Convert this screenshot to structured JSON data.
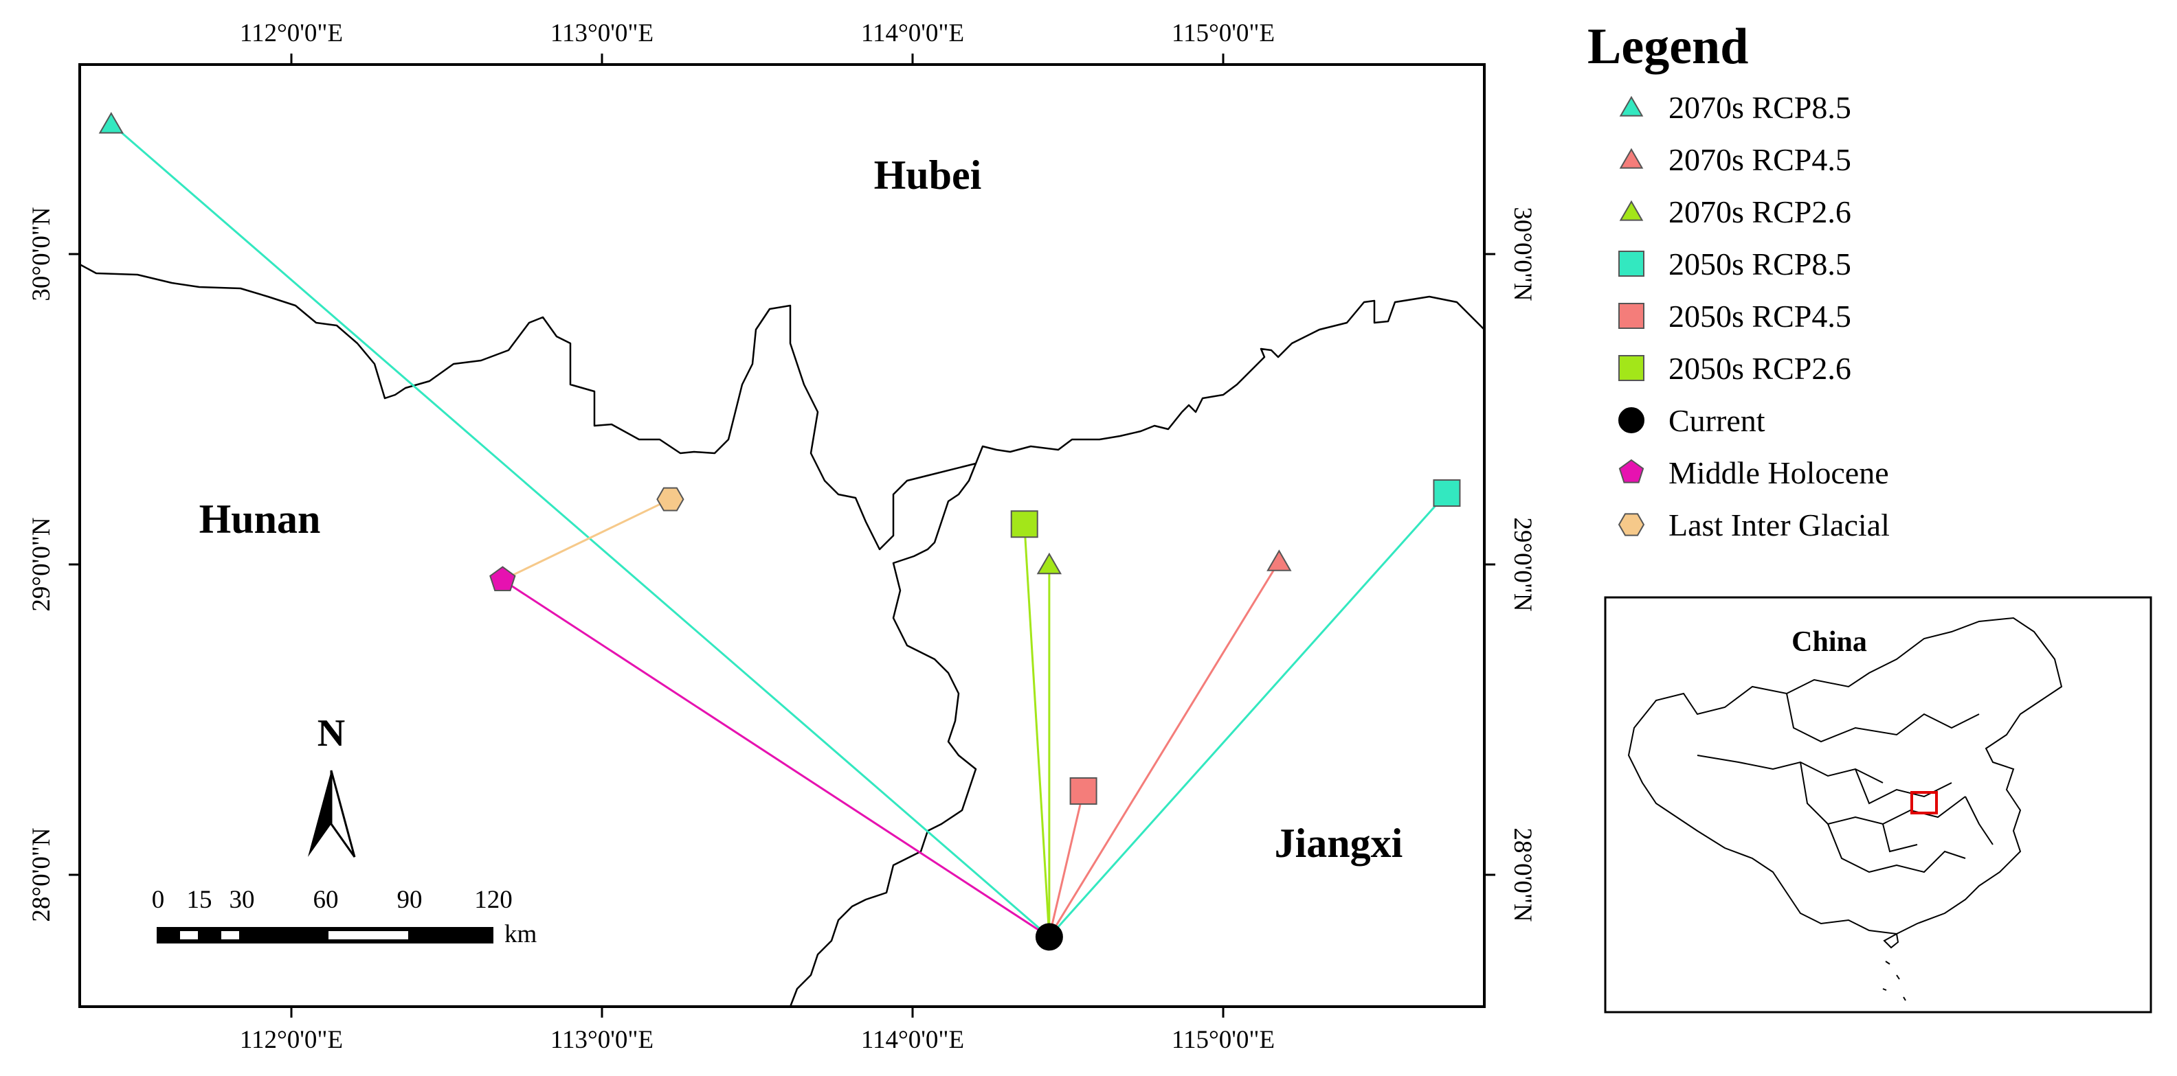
{
  "map": {
    "provinces": [
      "Hubei",
      "Hunan",
      "Jiangxi"
    ],
    "top_ticks": [
      "112°0'0\"E",
      "113°0'0\"E",
      "114°0'0\"E",
      "115°0'0\"E"
    ],
    "bottom_ticks": [
      "112°0'0\"E",
      "113°0'0\"E",
      "114°0'0\"E",
      "115°0'0\"E"
    ],
    "left_ticks": [
      "30°0'0\"N",
      "29°0'0\"N",
      "28°0'0\"N"
    ],
    "right_ticks": [
      "30°0'0\"N",
      "29°0'0\"N",
      "28°0'0\"N"
    ],
    "north_label": "N",
    "scalebar": {
      "labels": [
        "0",
        "15",
        "30",
        "60",
        "90",
        "120"
      ],
      "unit": "km"
    },
    "centroids": [
      {
        "name": "Current",
        "lon": 114.44,
        "lat": 27.8
      },
      {
        "name": "2070s RCP8.5",
        "lon": 111.42,
        "lat": 30.42
      },
      {
        "name": "2070s RCP4.5",
        "lon": 115.18,
        "lat": 29.01
      },
      {
        "name": "2070s RCP2.6",
        "lon": 114.44,
        "lat": 29.0
      },
      {
        "name": "2050s RCP8.5",
        "lon": 115.72,
        "lat": 29.23
      },
      {
        "name": "2050s RCP4.5",
        "lon": 114.55,
        "lat": 28.27
      },
      {
        "name": "2050s RCP2.6",
        "lon": 114.36,
        "lat": 29.13
      },
      {
        "name": "Middle Holocene",
        "lon": 112.68,
        "lat": 28.95
      },
      {
        "name": "Last Inter Glacial",
        "lon": 113.22,
        "lat": 29.21
      }
    ],
    "colors": {
      "rcp85": "#33e8c0",
      "rcp45": "#f47d7a",
      "rcp26": "#a3e619",
      "current": "#000000",
      "holocene": "#e612b0",
      "lig": "#f6c98a"
    }
  },
  "legend": {
    "title": "Legend",
    "items": [
      {
        "label": "2070s RCP8.5",
        "shape": "triangle-icon",
        "color": "#33e8c0"
      },
      {
        "label": "2070s RCP4.5",
        "shape": "triangle-icon",
        "color": "#f47d7a"
      },
      {
        "label": "2070s RCP2.6",
        "shape": "triangle-icon",
        "color": "#a3e619"
      },
      {
        "label": "2050s RCP8.5",
        "shape": "square-icon",
        "color": "#33e8c0"
      },
      {
        "label": "2050s RCP4.5",
        "shape": "square-icon",
        "color": "#f47d7a"
      },
      {
        "label": "2050s RCP2.6",
        "shape": "square-icon",
        "color": "#a3e619"
      },
      {
        "label": "Current",
        "shape": "circle-icon",
        "color": "#000000"
      },
      {
        "label": "Middle Holocene",
        "shape": "pentagon-icon",
        "color": "#e612b0"
      },
      {
        "label": "Last Inter Glacial",
        "shape": "hexagon-icon",
        "color": "#f6c98a"
      }
    ]
  },
  "inset": {
    "title": "China"
  }
}
